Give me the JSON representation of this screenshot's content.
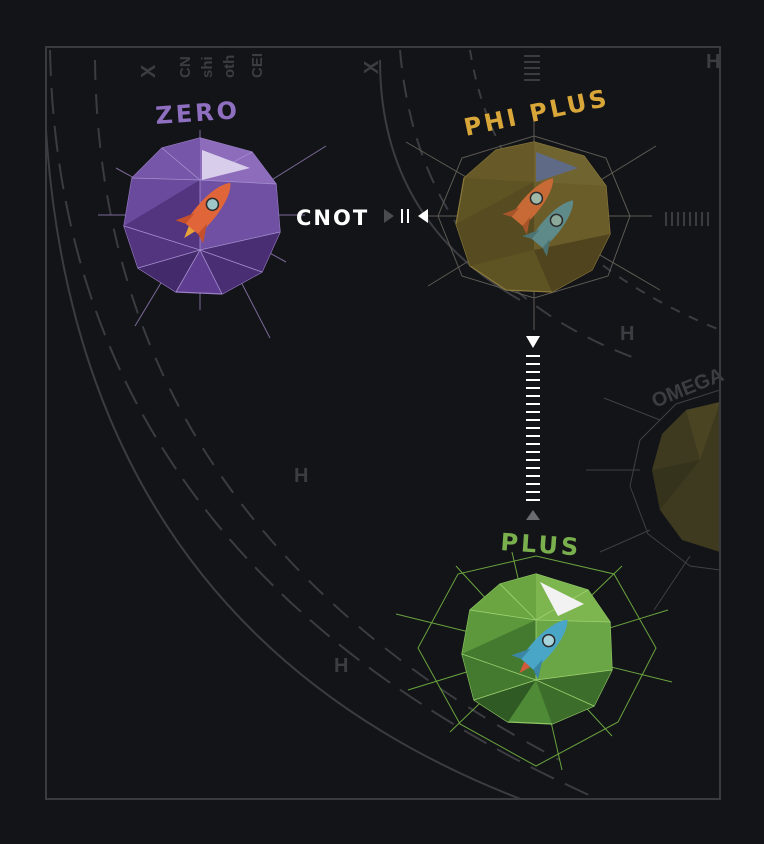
{
  "colors": {
    "background": "#131418",
    "zero": "#8e6fc0",
    "phi_plus": "#d9a63a",
    "plus": "#7aaf4e",
    "faint": "#3c3d42",
    "gate_text": "#ffffff"
  },
  "planets": {
    "zero": {
      "label": "ZERO"
    },
    "phi_plus": {
      "label": "PHI PLUS"
    },
    "plus": {
      "label": "PLUS"
    },
    "omega": {
      "label": "OMEGA"
    }
  },
  "gates": {
    "cnot": "CNOT",
    "h": "H",
    "x": "X"
  },
  "background_fragments": {
    "cnot_partial": "CN",
    "ship_partial": "shi",
    "other_partial": "oth",
    "center_partial": "CEI"
  },
  "icons": [
    "rocket-icon",
    "flag-icon",
    "play-arrow-icon"
  ]
}
